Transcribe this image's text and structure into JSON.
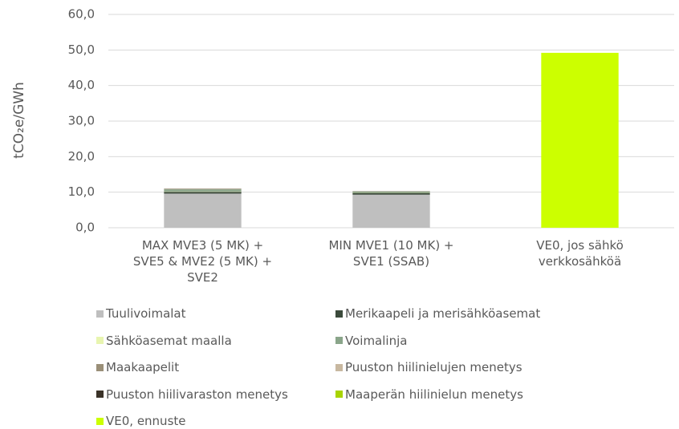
{
  "chart_data": {
    "type": "stacked_bar",
    "y_label": "tCO₂e/GWh",
    "categories": [
      "MAX MVE3 (5 MK) +\nSVE5 & MVE2 (5 MK) +\nSVE2",
      "MIN MVE1 (10 MK) +\nSVE1 (SSAB)",
      "VE0, jos sähkö\nverkkosähköä"
    ],
    "series": [
      {
        "name": "Tuulivoimalat",
        "color": "#bfbfbf",
        "values": [
          9.6,
          9.3,
          0
        ]
      },
      {
        "name": "Merikaapeli ja merisähköasemat",
        "color": "#3b4a3b",
        "values": [
          0.5,
          0.5,
          0
        ]
      },
      {
        "name": "Sähköasemat maalla",
        "color": "#e8f5b0",
        "values": [
          0.1,
          0.1,
          0
        ]
      },
      {
        "name": "Voimalinja",
        "color": "#8aa58a",
        "values": [
          0.6,
          0.3,
          0
        ]
      },
      {
        "name": "Maakaapelit",
        "color": "#9a8f78",
        "values": [
          0.2,
          0.1,
          0
        ]
      },
      {
        "name": "Puuston hiilinielujen menetys",
        "color": "#c8b8a0",
        "values": [
          0,
          0,
          0
        ]
      },
      {
        "name": "Puuston hiilivaraston menetys",
        "color": "#3a3228",
        "values": [
          0,
          0,
          0
        ]
      },
      {
        "name": "Maaperän hiilinielun menetys",
        "color": "#a8d400",
        "values": [
          0,
          0,
          0
        ]
      },
      {
        "name": "VE0, ennuste",
        "color": "#ccff00",
        "values": [
          0,
          0,
          49.2
        ]
      }
    ],
    "ylim": [
      0,
      60
    ],
    "yticks": [
      {
        "value": 0,
        "label": "0,0"
      },
      {
        "value": 10,
        "label": "10,0"
      },
      {
        "value": 20,
        "label": "20,0"
      },
      {
        "value": 30,
        "label": "30,0"
      },
      {
        "value": 40,
        "label": "40,0"
      },
      {
        "value": 50,
        "label": "50,0"
      },
      {
        "value": 60,
        "label": "60,0"
      }
    ],
    "grid": true
  }
}
